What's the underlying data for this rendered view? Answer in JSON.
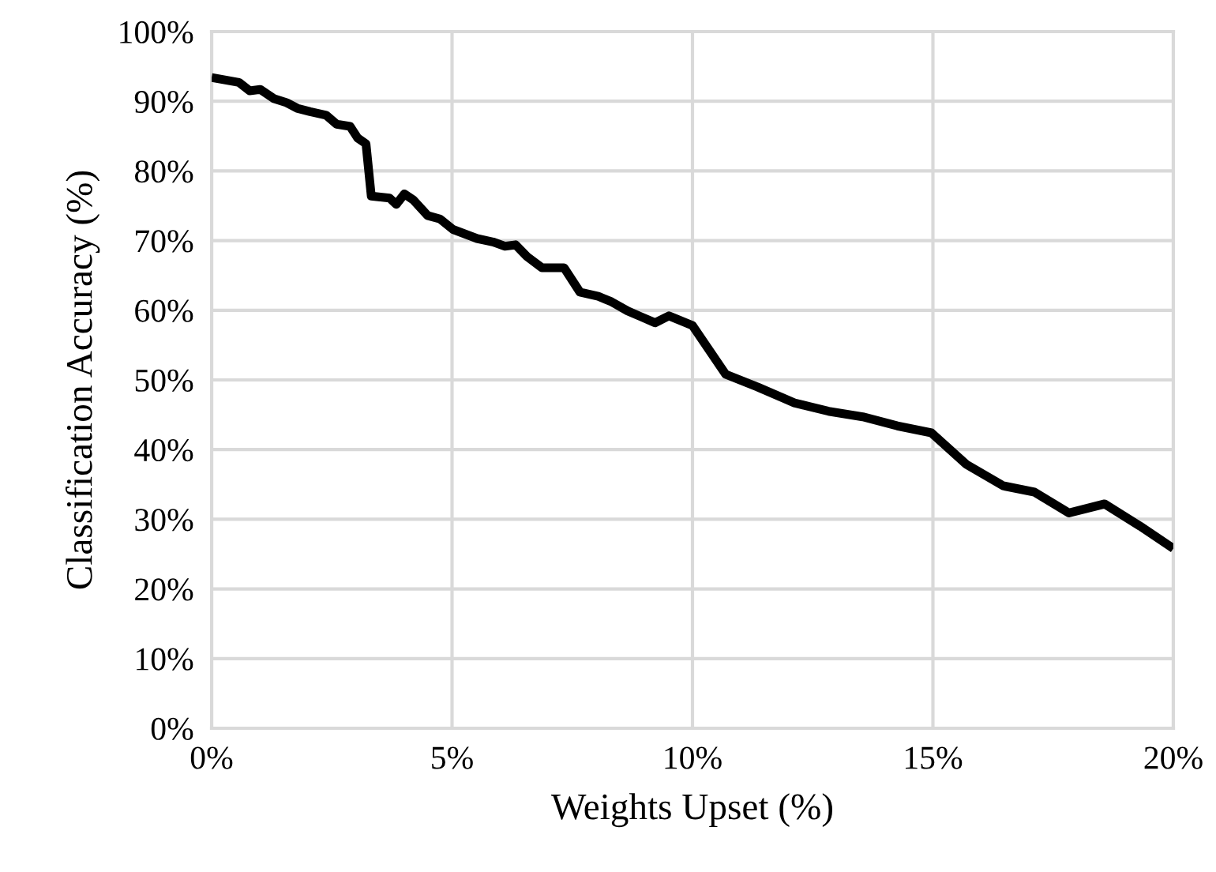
{
  "chart_data": {
    "type": "line",
    "xlabel": "Weights Upset (%)",
    "ylabel": "Classification Accuracy (%)",
    "x": [
      0,
      0.57,
      0.79,
      1.01,
      1.29,
      1.56,
      1.78,
      2.05,
      2.38,
      2.6,
      2.88,
      3.04,
      3.21,
      3.32,
      3.7,
      3.84,
      4.01,
      4.2,
      4.49,
      4.75,
      5.02,
      5.52,
      5.85,
      6.1,
      6.32,
      6.56,
      6.87,
      7.33,
      7.66,
      8.04,
      8.32,
      8.65,
      8.92,
      9.22,
      9.51,
      9.86,
      10.0,
      10.69,
      11.35,
      12.12,
      12.83,
      13.54,
      14.26,
      14.97,
      15.69,
      16.46,
      17.11,
      17.83,
      18.57,
      19.31,
      20.0
    ],
    "series": [
      {
        "color": "#000000",
        "values": [
          93.4,
          92.7,
          91.5,
          91.7,
          90.4,
          89.8,
          89.0,
          88.5,
          88.0,
          86.7,
          86.4,
          84.7,
          83.9,
          76.4,
          76.1,
          75.2,
          76.7,
          75.8,
          73.6,
          73.1,
          71.6,
          70.3,
          69.8,
          69.2,
          69.4,
          67.7,
          66.1,
          66.1,
          62.6,
          62.0,
          61.2,
          59.9,
          59.1,
          58.2,
          59.2,
          58.2,
          57.8,
          50.8,
          49.0,
          46.7,
          45.5,
          44.7,
          43.4,
          42.4,
          37.9,
          34.8,
          33.9,
          30.9,
          32.2,
          29.0,
          25.8
        ]
      }
    ],
    "xlim": [
      0,
      20
    ],
    "xticks": [
      {
        "value": 0,
        "label": "0%"
      },
      {
        "value": 5,
        "label": "5%"
      },
      {
        "value": 10,
        "label": "10%"
      },
      {
        "value": 15,
        "label": "15%"
      },
      {
        "value": 20,
        "label": "20%"
      }
    ],
    "ylim": [
      0,
      100
    ],
    "yticks": [
      {
        "value": 0,
        "label": "0%"
      },
      {
        "value": 10,
        "label": "10%"
      },
      {
        "value": 20,
        "label": "20%"
      },
      {
        "value": 30,
        "label": "30%"
      },
      {
        "value": 40,
        "label": "40%"
      },
      {
        "value": 50,
        "label": "50%"
      },
      {
        "value": 60,
        "label": "60%"
      },
      {
        "value": 70,
        "label": "70%"
      },
      {
        "value": 80,
        "label": "80%"
      },
      {
        "value": 90,
        "label": "90%"
      },
      {
        "value": 100,
        "label": "100%"
      }
    ],
    "grid": true,
    "line_style": "solid"
  }
}
